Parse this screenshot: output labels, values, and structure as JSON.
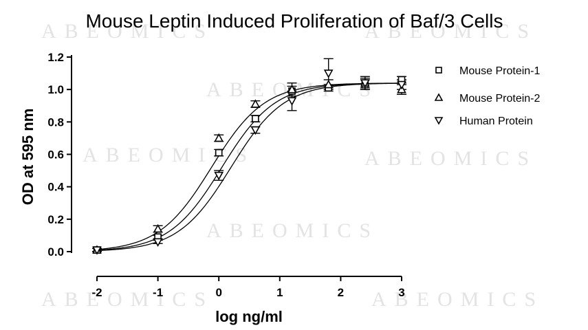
{
  "watermark_text": "ABEOMICS",
  "chart_data": {
    "type": "scatter",
    "title": "Mouse Leptin Induced Proliferation of Baf/3 Cells",
    "xlabel": "log ng/ml",
    "ylabel": "OD at 595 nm",
    "xlim": [
      -2,
      3
    ],
    "ylim": [
      0,
      1.2
    ],
    "x_ticks": [
      "-2",
      "-1",
      "0",
      "1",
      "2",
      "3"
    ],
    "y_ticks": [
      "0.0",
      "0.2",
      "0.4",
      "0.6",
      "0.8",
      "1.0",
      "1.2"
    ],
    "grid": false,
    "legend_position": "right",
    "series": [
      {
        "name": "Mouse Protein-1",
        "marker": "square",
        "points": [
          {
            "x": -2.0,
            "y": 0.01,
            "err": 0.01
          },
          {
            "x": -1.0,
            "y": 0.09,
            "err": 0.01
          },
          {
            "x": 0.0,
            "y": 0.61,
            "err": 0.02
          },
          {
            "x": 0.6,
            "y": 0.82,
            "err": 0.02
          },
          {
            "x": 1.2,
            "y": 0.99,
            "err": 0.03
          },
          {
            "x": 1.8,
            "y": 1.01,
            "err": 0.02
          },
          {
            "x": 2.4,
            "y": 1.03,
            "err": 0.03
          },
          {
            "x": 3.0,
            "y": 1.06,
            "err": 0.02
          }
        ],
        "curve": {
          "bottom": 0.0,
          "top": 1.04,
          "logEC50": 0.05,
          "hill": 1.0
        }
      },
      {
        "name": "Mouse Protein-2",
        "marker": "triangle-up",
        "points": [
          {
            "x": -2.0,
            "y": 0.01,
            "err": 0.01
          },
          {
            "x": -1.0,
            "y": 0.14,
            "err": 0.02
          },
          {
            "x": 0.0,
            "y": 0.7,
            "err": 0.02
          },
          {
            "x": 0.6,
            "y": 0.91,
            "err": 0.02
          },
          {
            "x": 1.2,
            "y": 1.0,
            "err": 0.04
          },
          {
            "x": 1.8,
            "y": 1.03,
            "err": 0.03
          },
          {
            "x": 2.4,
            "y": 1.04,
            "err": 0.03
          },
          {
            "x": 3.0,
            "y": 1.0,
            "err": 0.03
          }
        ],
        "curve": {
          "bottom": 0.0,
          "top": 1.04,
          "logEC50": -0.12,
          "hill": 1.0
        }
      },
      {
        "name": "Human Protein",
        "marker": "triangle-down",
        "points": [
          {
            "x": -2.0,
            "y": 0.01,
            "err": 0.01
          },
          {
            "x": -1.0,
            "y": 0.06,
            "err": 0.01
          },
          {
            "x": 0.0,
            "y": 0.47,
            "err": 0.03
          },
          {
            "x": 0.6,
            "y": 0.75,
            "err": 0.02
          },
          {
            "x": 1.2,
            "y": 0.93,
            "err": 0.06
          },
          {
            "x": 1.8,
            "y": 1.1,
            "err": 0.09
          },
          {
            "x": 2.4,
            "y": 1.04,
            "err": 0.04
          },
          {
            "x": 3.0,
            "y": 1.03,
            "err": 0.03
          }
        ],
        "curve": {
          "bottom": 0.0,
          "top": 1.04,
          "logEC50": 0.2,
          "hill": 1.0
        }
      }
    ]
  }
}
